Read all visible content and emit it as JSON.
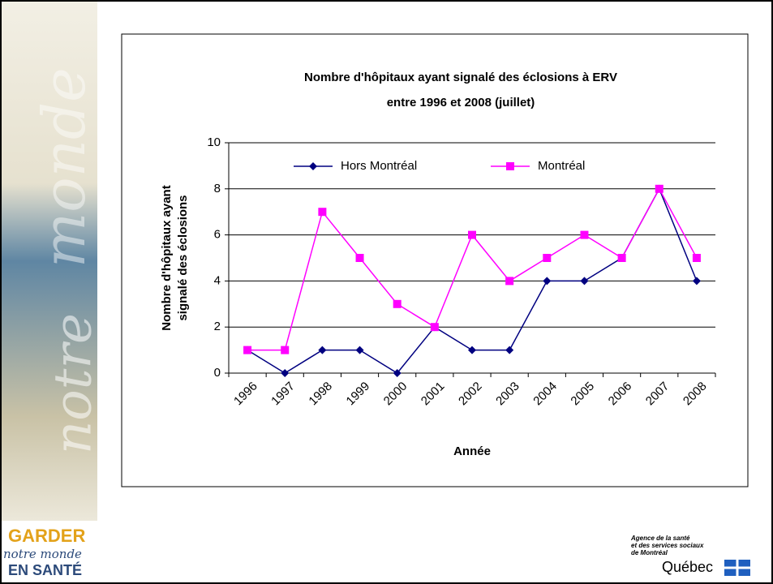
{
  "chart_data": {
    "type": "line",
    "title": [
      "Nombre d'hôpitaux ayant signalé des éclosions à ERV",
      "entre 1996 et 2008 (juillet)"
    ],
    "x_label": "Année",
    "y_label": [
      "Nombre d'hôpitaux ayant",
      "signalé des éclosions"
    ],
    "categories": [
      "1996",
      "1997",
      "1998",
      "1999",
      "2000",
      "2001",
      "2002",
      "2003",
      "2004",
      "2005",
      "2006",
      "2007",
      "2008"
    ],
    "series": [
      {
        "name": "Hors Montréal",
        "color": "#000080",
        "marker": "diamond",
        "values": [
          1,
          0,
          1,
          1,
          0,
          2,
          1,
          1,
          4,
          4,
          5,
          8,
          4
        ]
      },
      {
        "name": "Montréal",
        "color": "#ff00ff",
        "marker": "square",
        "values": [
          1,
          1,
          7,
          5,
          3,
          2,
          6,
          4,
          5,
          6,
          5,
          8,
          5
        ]
      }
    ],
    "ylim": [
      0,
      10
    ],
    "yticks": [
      0,
      2,
      4,
      6,
      8,
      10
    ],
    "grid": true,
    "legend": "top"
  },
  "slide": {
    "sidebar": [
      "notre",
      "monde"
    ],
    "logo_left": [
      "GARDER",
      "notre monde",
      "EN SANTÉ"
    ],
    "agency": [
      "Agence de la santé",
      "et des services sociaux",
      "de Montréal"
    ],
    "province": "Québec"
  }
}
